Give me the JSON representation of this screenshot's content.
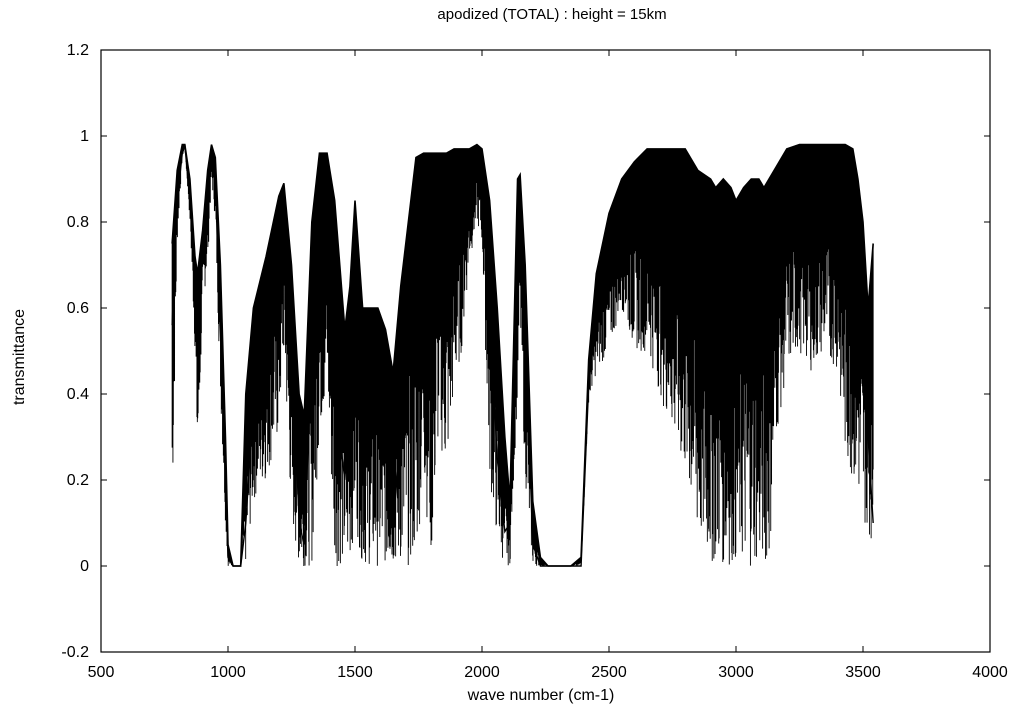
{
  "chart_data": {
    "type": "line",
    "title": "apodized (TOTAL) : height = 15km",
    "xlabel": "wave number (cm-1)",
    "ylabel": "transmittance",
    "xlim": [
      500,
      4000
    ],
    "ylim": [
      -0.2,
      1.2
    ],
    "xticks": [
      500,
      1000,
      1500,
      2000,
      2500,
      3000,
      3500,
      4000
    ],
    "yticks": [
      -0.2,
      0,
      0.2,
      0.4,
      0.6,
      0.8,
      1,
      1.2
    ],
    "xtick_labels": [
      "500",
      "1000",
      "1500",
      "2000",
      "2500",
      "3000",
      "3500",
      "4000"
    ],
    "ytick_labels": [
      "-0.2",
      "0",
      "0.2",
      "0.4",
      "0.6",
      "0.8",
      "1",
      "1.2"
    ],
    "grid": false,
    "legend": "none",
    "line_color": "#000000",
    "series": [
      {
        "x": [
          780,
          800,
          820,
          830,
          850,
          870,
          880,
          900,
          920,
          935,
          950,
          970,
          990,
          1000,
          1020,
          1050,
          1070,
          1100,
          1150,
          1200,
          1220,
          1250,
          1280,
          1300,
          1330,
          1360,
          1390,
          1420,
          1440,
          1460,
          1480,
          1500,
          1530,
          1560,
          1590,
          1620,
          1650,
          1680,
          1710,
          1740,
          1770,
          1800,
          1830,
          1860,
          1890,
          1920,
          1950,
          1980,
          2000,
          2030,
          2060,
          2090,
          2110,
          2140,
          2150,
          2170,
          2200,
          2230,
          2260,
          2300,
          2350,
          2390,
          2420,
          2450,
          2500,
          2550,
          2600,
          2650,
          2700,
          2750,
          2800,
          2850,
          2900,
          2920,
          2950,
          2980,
          3000,
          3030,
          3060,
          3090,
          3110,
          3130,
          3160,
          3200,
          3250,
          3300,
          3350,
          3400,
          3430,
          3460,
          3480,
          3500,
          3520,
          3540
        ],
        "values": [
          0.56,
          0.85,
          0.96,
          0.98,
          0.85,
          0.66,
          0.6,
          0.72,
          0.86,
          0.97,
          0.9,
          0.55,
          0.2,
          0.02,
          0.0,
          0.0,
          0.1,
          0.38,
          0.55,
          0.82,
          0.88,
          0.55,
          0.1,
          0.05,
          0.5,
          0.88,
          0.95,
          0.6,
          0.3,
          0.2,
          0.4,
          0.6,
          0.2,
          0.45,
          0.5,
          0.35,
          0.1,
          0.3,
          0.55,
          0.85,
          0.95,
          0.8,
          0.92,
          0.88,
          0.95,
          0.93,
          0.96,
          0.97,
          0.94,
          0.6,
          0.25,
          0.08,
          0.1,
          0.75,
          0.9,
          0.55,
          0.05,
          0.0,
          0.0,
          0.0,
          0.0,
          0.0,
          0.42,
          0.58,
          0.72,
          0.88,
          0.92,
          0.96,
          0.95,
          0.94,
          0.9,
          0.75,
          0.5,
          0.45,
          0.62,
          0.55,
          0.4,
          0.5,
          0.6,
          0.55,
          0.45,
          0.5,
          0.8,
          0.96,
          0.97,
          0.96,
          0.96,
          0.97,
          0.96,
          0.9,
          0.75,
          0.55,
          0.3,
          0.1
        ],
        "envelope_low": [
          0.1,
          0.75,
          0.95,
          0.97,
          0.8,
          0.5,
          0.2,
          0.6,
          0.7,
          0.9,
          0.8,
          0.4,
          0.1,
          0.0,
          0.0,
          0.0,
          0.0,
          0.15,
          0.2,
          0.3,
          0.5,
          0.1,
          0.0,
          0.0,
          0.0,
          0.3,
          0.4,
          0.0,
          0.0,
          0.0,
          0.0,
          0.1,
          0.0,
          0.0,
          0.0,
          0.0,
          0.0,
          0.0,
          0.0,
          0.0,
          0.2,
          0.0,
          0.3,
          0.2,
          0.4,
          0.5,
          0.7,
          0.8,
          0.75,
          0.2,
          0.05,
          0.0,
          0.0,
          0.4,
          0.55,
          0.2,
          0.0,
          0.0,
          0.0,
          0.0,
          0.0,
          0.0,
          0.38,
          0.45,
          0.5,
          0.6,
          0.5,
          0.5,
          0.4,
          0.3,
          0.2,
          0.05,
          0.0,
          0.0,
          0.0,
          0.0,
          0.0,
          0.0,
          0.0,
          0.0,
          0.0,
          0.0,
          0.3,
          0.45,
          0.5,
          0.45,
          0.5,
          0.45,
          0.25,
          0.2,
          0.15,
          0.1,
          0.08,
          0.05
        ],
        "envelope_high": [
          0.75,
          0.92,
          0.98,
          0.98,
          0.9,
          0.72,
          0.68,
          0.78,
          0.92,
          0.98,
          0.95,
          0.7,
          0.3,
          0.05,
          0.0,
          0.0,
          0.4,
          0.6,
          0.72,
          0.86,
          0.89,
          0.7,
          0.4,
          0.35,
          0.8,
          0.96,
          0.96,
          0.85,
          0.7,
          0.55,
          0.65,
          0.85,
          0.6,
          0.6,
          0.6,
          0.55,
          0.45,
          0.65,
          0.8,
          0.95,
          0.96,
          0.96,
          0.96,
          0.96,
          0.97,
          0.97,
          0.97,
          0.98,
          0.97,
          0.85,
          0.6,
          0.3,
          0.15,
          0.9,
          0.91,
          0.7,
          0.15,
          0.02,
          0.0,
          0.0,
          0.0,
          0.02,
          0.48,
          0.68,
          0.82,
          0.9,
          0.94,
          0.97,
          0.97,
          0.97,
          0.97,
          0.92,
          0.9,
          0.88,
          0.9,
          0.88,
          0.85,
          0.88,
          0.9,
          0.9,
          0.88,
          0.9,
          0.93,
          0.97,
          0.98,
          0.98,
          0.98,
          0.98,
          0.98,
          0.97,
          0.9,
          0.8,
          0.6,
          0.75
        ]
      }
    ]
  }
}
